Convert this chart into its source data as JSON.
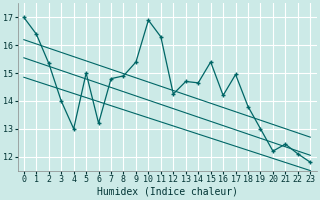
{
  "xlabel": "Humidex (Indice chaleur)",
  "ylabel": "",
  "bg_color": "#cceae7",
  "grid_color": "#ffffff",
  "line_color": "#006666",
  "xlim": [
    -0.5,
    23.5
  ],
  "ylim": [
    11.5,
    17.5
  ],
  "xticks": [
    0,
    1,
    2,
    3,
    4,
    5,
    6,
    7,
    8,
    9,
    10,
    11,
    12,
    13,
    14,
    15,
    16,
    17,
    18,
    19,
    20,
    21,
    22,
    23
  ],
  "yticks": [
    12,
    13,
    14,
    15,
    16,
    17
  ],
  "x": [
    0,
    1,
    2,
    3,
    4,
    5,
    6,
    7,
    8,
    9,
    10,
    11,
    12,
    13,
    14,
    15,
    16,
    17,
    18,
    19,
    20,
    21,
    22,
    23
  ],
  "y": [
    17.0,
    16.4,
    15.35,
    14.0,
    13.0,
    15.0,
    13.2,
    14.8,
    14.9,
    15.4,
    16.9,
    16.3,
    14.25,
    14.7,
    14.65,
    15.4,
    14.2,
    14.95,
    13.8,
    13.0,
    12.2,
    12.45,
    12.1,
    11.8
  ],
  "trend1_start": 16.2,
  "trend1_end": 12.7,
  "trend2_start": 15.55,
  "trend2_end": 12.05,
  "trend3_start": 14.85,
  "trend3_end": 11.5,
  "xlabel_fontsize": 7,
  "tick_fontsize": 6
}
